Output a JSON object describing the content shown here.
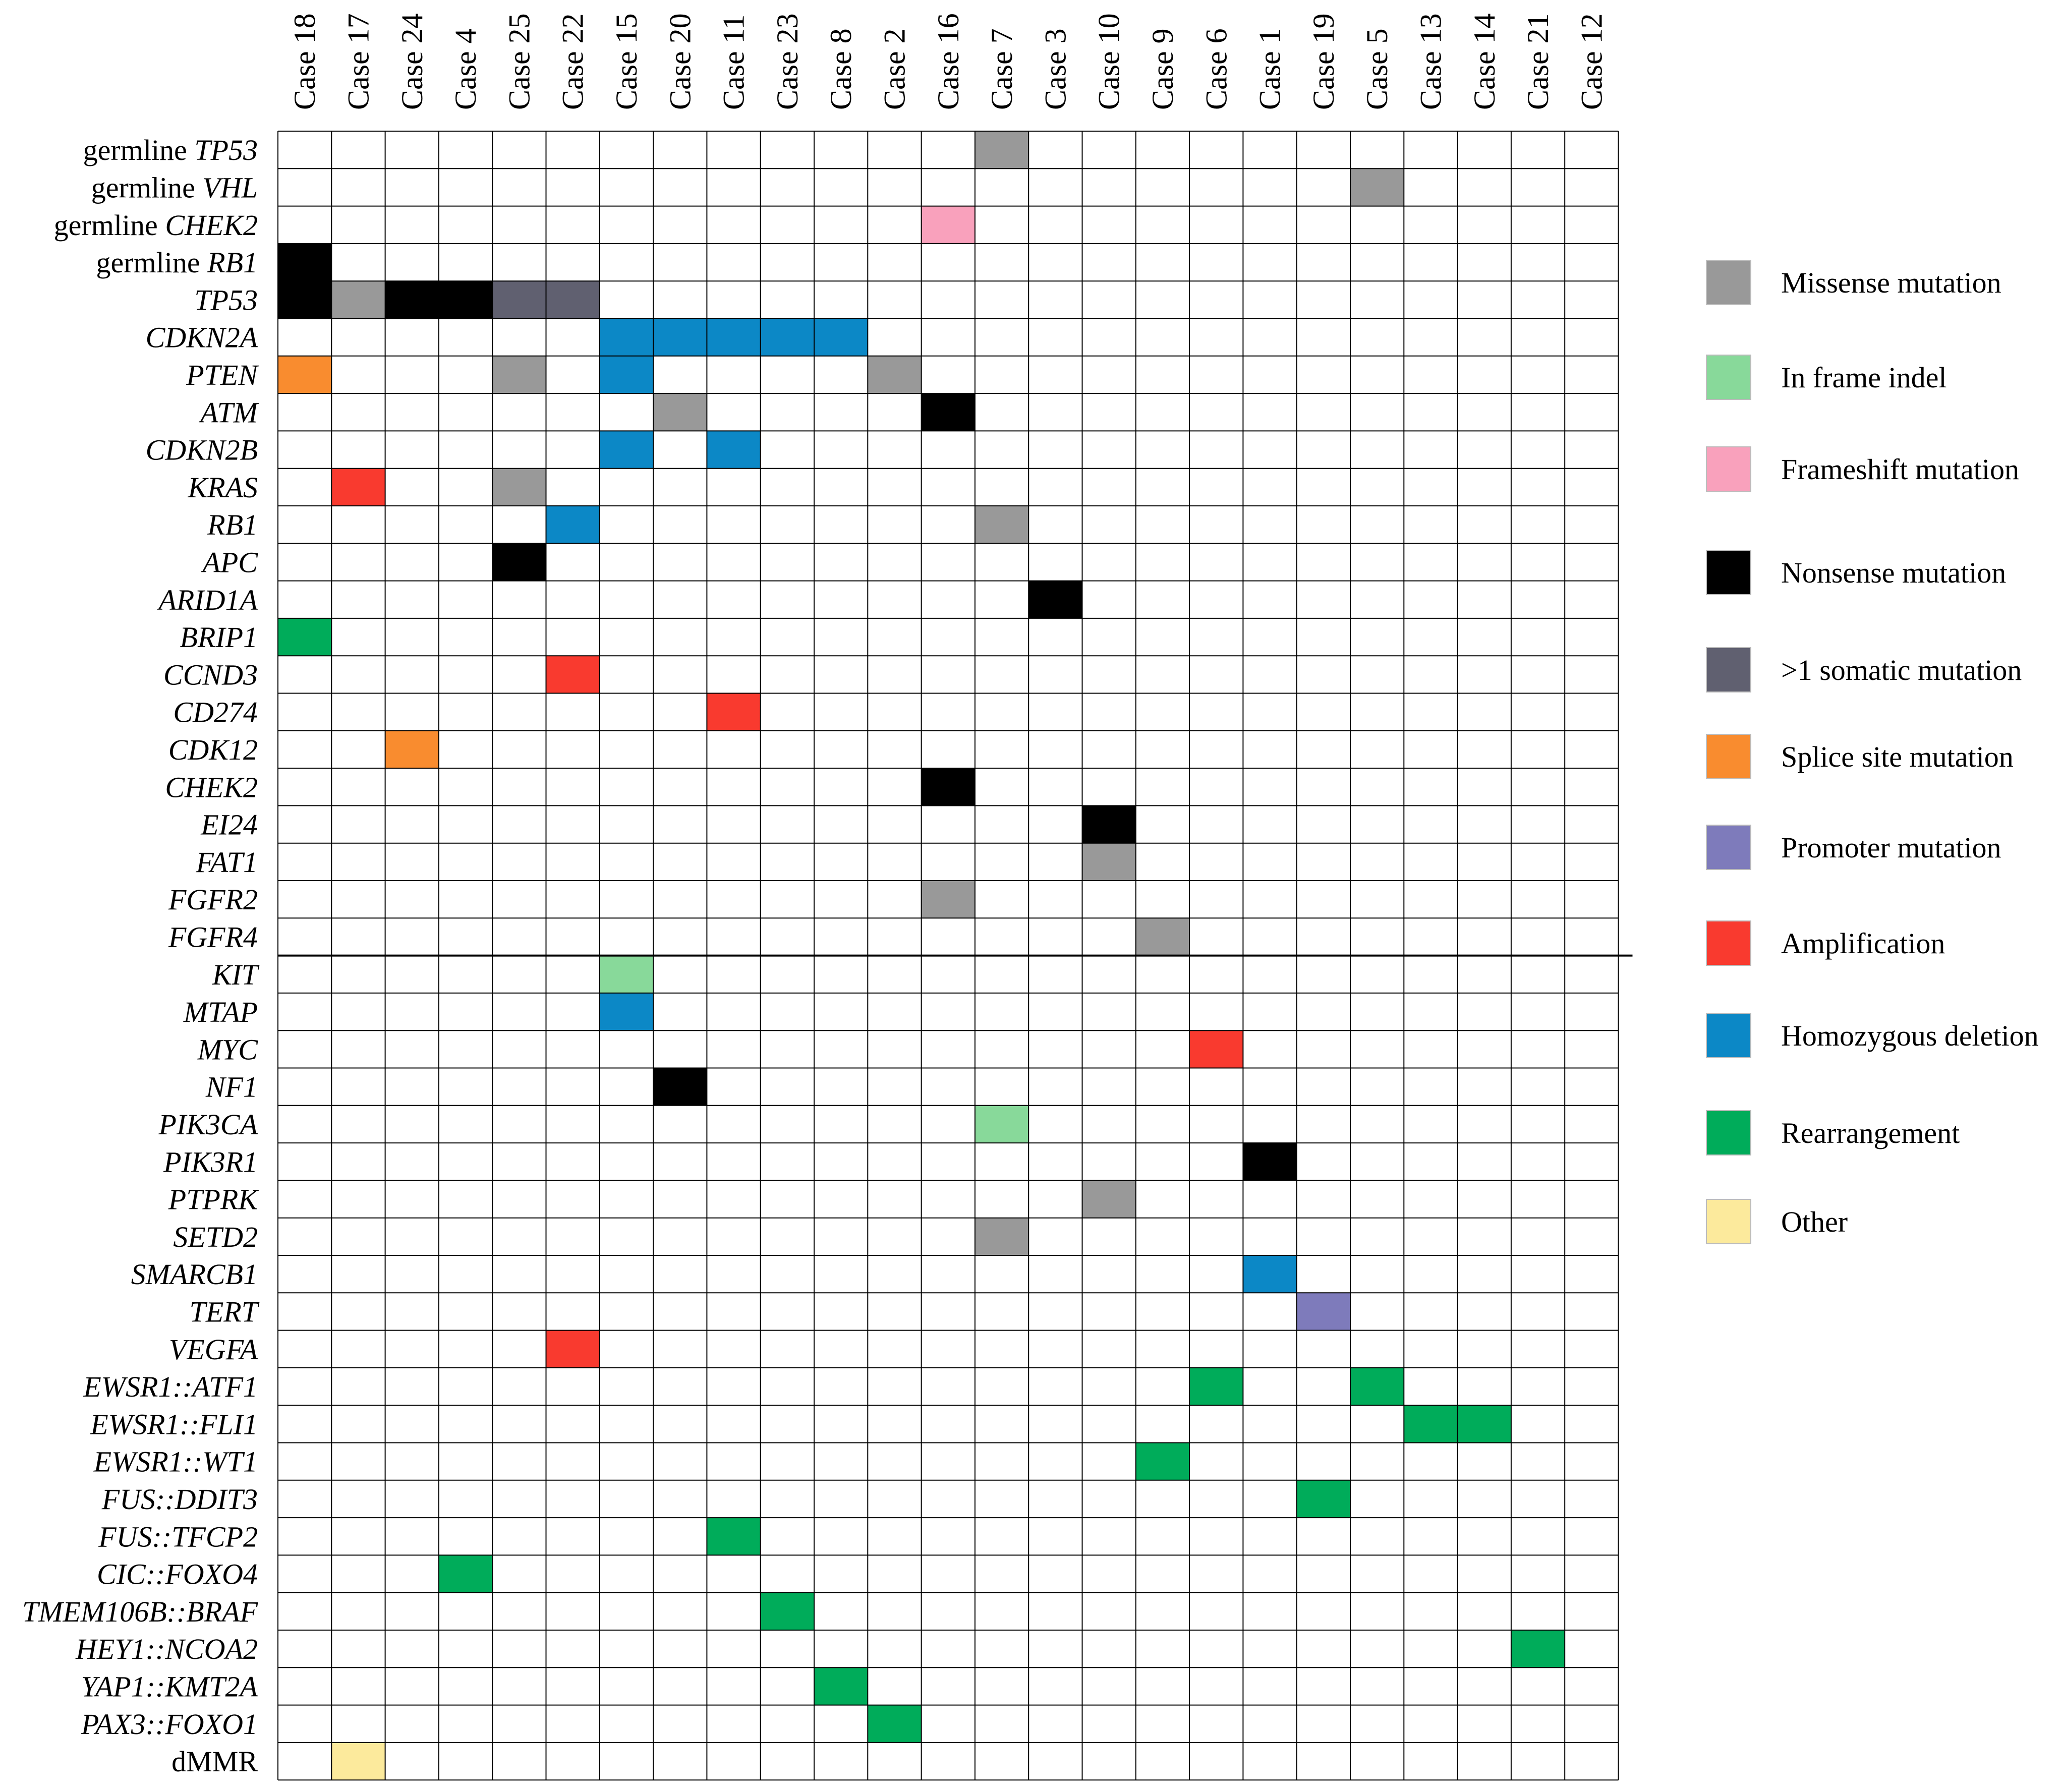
{
  "chart_data": {
    "type": "heatmap",
    "title": "",
    "cases": [
      "Case 18",
      "Case 17",
      "Case 24",
      "Case 4",
      "Case 25",
      "Case 22",
      "Case 15",
      "Case 20",
      "Case 11",
      "Case 23",
      "Case 8",
      "Case 2",
      "Case 16",
      "Case 7",
      "Case 3",
      "Case 10",
      "Case 9",
      "Case 6",
      "Case 1",
      "Case 19",
      "Case 5",
      "Case 13",
      "Case 14",
      "Case 21",
      "Case 12"
    ],
    "rows": [
      {
        "prefix": "germline ",
        "gene": "TP53"
      },
      {
        "prefix": "germline ",
        "gene": "VHL"
      },
      {
        "prefix": "germline ",
        "gene": "CHEK2"
      },
      {
        "prefix": "germline ",
        "gene": "RB1"
      },
      {
        "prefix": "",
        "gene": "TP53"
      },
      {
        "prefix": "",
        "gene": "CDKN2A"
      },
      {
        "prefix": "",
        "gene": "PTEN"
      },
      {
        "prefix": "",
        "gene": "ATM"
      },
      {
        "prefix": "",
        "gene": "CDKN2B"
      },
      {
        "prefix": "",
        "gene": "KRAS"
      },
      {
        "prefix": "",
        "gene": "RB1"
      },
      {
        "prefix": "",
        "gene": "APC"
      },
      {
        "prefix": "",
        "gene": "ARID1A"
      },
      {
        "prefix": "",
        "gene": "BRIP1"
      },
      {
        "prefix": "",
        "gene": "CCND3"
      },
      {
        "prefix": "",
        "gene": "CD274"
      },
      {
        "prefix": "",
        "gene": "CDK12"
      },
      {
        "prefix": "",
        "gene": "CHEK2"
      },
      {
        "prefix": "",
        "gene": "EI24"
      },
      {
        "prefix": "",
        "gene": "FAT1"
      },
      {
        "prefix": "",
        "gene": "FGFR2"
      },
      {
        "prefix": "",
        "gene": "FGFR4"
      },
      {
        "prefix": "",
        "gene": "KIT"
      },
      {
        "prefix": "",
        "gene": "MTAP"
      },
      {
        "prefix": "",
        "gene": "MYC"
      },
      {
        "prefix": "",
        "gene": "NF1"
      },
      {
        "prefix": "",
        "gene": "PIK3CA"
      },
      {
        "prefix": "",
        "gene": "PIK3R1"
      },
      {
        "prefix": "",
        "gene": "PTPRK"
      },
      {
        "prefix": "",
        "gene": "SETD2"
      },
      {
        "prefix": "",
        "gene": "SMARCB1"
      },
      {
        "prefix": "",
        "gene": "TERT"
      },
      {
        "prefix": "",
        "gene": "VEGFA"
      },
      {
        "prefix": "",
        "gene": "EWSR1::ATF1"
      },
      {
        "prefix": "",
        "gene": "EWSR1::FLI1"
      },
      {
        "prefix": "",
        "gene": "EWSR1::WT1"
      },
      {
        "prefix": "",
        "gene": "FUS::DDIT3"
      },
      {
        "prefix": "",
        "gene": "FUS::TFCP2"
      },
      {
        "prefix": "",
        "gene": "CIC::FOXO4"
      },
      {
        "prefix": "",
        "gene": "TMEM106B::BRAF"
      },
      {
        "prefix": "",
        "gene": "HEY1::NCOA2"
      },
      {
        "prefix": "",
        "gene": "YAP1::KMT2A"
      },
      {
        "prefix": "",
        "gene": "PAX3::FOXO1"
      },
      {
        "prefix": "dMMR",
        "gene": ""
      }
    ],
    "separator_after_row": 22,
    "categories": [
      {
        "key": "missense",
        "label": "Missense mutation",
        "color": "#999999"
      },
      {
        "key": "inframe",
        "label": "In frame indel",
        "color": "#88D99A"
      },
      {
        "key": "frameshift",
        "label": "Frameshift mutation",
        "color": "#F9A1BC"
      },
      {
        "key": "nonsense",
        "label": "Nonsense mutation",
        "color": "#000000"
      },
      {
        "key": "multi",
        "label": ">1 somatic mutation",
        "color": "#606070"
      },
      {
        "key": "splice",
        "label": "Splice site mutation",
        "color": "#F98C2F"
      },
      {
        "key": "promoter",
        "label": "Promoter mutation",
        "color": "#7E7BBB"
      },
      {
        "key": "amplification",
        "label": "Amplification",
        "color": "#F93A2F"
      },
      {
        "key": "homdel",
        "label": "Homozygous deletion",
        "color": "#0C88C6"
      },
      {
        "key": "rearrangement",
        "label": "Rearrangement",
        "color": "#00AC5A"
      },
      {
        "key": "other",
        "label": "Other",
        "color": "#FCEA9C"
      }
    ],
    "alterations": [
      {
        "row": 0,
        "col": 13,
        "type": "missense"
      },
      {
        "row": 1,
        "col": 20,
        "type": "missense"
      },
      {
        "row": 2,
        "col": 12,
        "type": "frameshift"
      },
      {
        "row": 3,
        "col": 0,
        "type": "nonsense"
      },
      {
        "row": 4,
        "col": 0,
        "type": "nonsense"
      },
      {
        "row": 4,
        "col": 1,
        "type": "missense"
      },
      {
        "row": 4,
        "col": 2,
        "type": "nonsense"
      },
      {
        "row": 4,
        "col": 3,
        "type": "nonsense"
      },
      {
        "row": 4,
        "col": 4,
        "type": "multi"
      },
      {
        "row": 4,
        "col": 5,
        "type": "multi"
      },
      {
        "row": 5,
        "col": 6,
        "type": "homdel"
      },
      {
        "row": 5,
        "col": 7,
        "type": "homdel"
      },
      {
        "row": 5,
        "col": 8,
        "type": "homdel"
      },
      {
        "row": 5,
        "col": 9,
        "type": "homdel"
      },
      {
        "row": 5,
        "col": 10,
        "type": "homdel"
      },
      {
        "row": 6,
        "col": 0,
        "type": "splice"
      },
      {
        "row": 6,
        "col": 4,
        "type": "missense"
      },
      {
        "row": 6,
        "col": 6,
        "type": "homdel"
      },
      {
        "row": 6,
        "col": 11,
        "type": "missense"
      },
      {
        "row": 7,
        "col": 7,
        "type": "missense"
      },
      {
        "row": 7,
        "col": 12,
        "type": "nonsense"
      },
      {
        "row": 8,
        "col": 6,
        "type": "homdel"
      },
      {
        "row": 8,
        "col": 8,
        "type": "homdel"
      },
      {
        "row": 9,
        "col": 1,
        "type": "amplification"
      },
      {
        "row": 9,
        "col": 4,
        "type": "missense"
      },
      {
        "row": 10,
        "col": 5,
        "type": "homdel"
      },
      {
        "row": 10,
        "col": 13,
        "type": "missense"
      },
      {
        "row": 11,
        "col": 4,
        "type": "nonsense"
      },
      {
        "row": 12,
        "col": 14,
        "type": "nonsense"
      },
      {
        "row": 13,
        "col": 0,
        "type": "rearrangement"
      },
      {
        "row": 14,
        "col": 5,
        "type": "amplification"
      },
      {
        "row": 15,
        "col": 8,
        "type": "amplification"
      },
      {
        "row": 16,
        "col": 2,
        "type": "splice"
      },
      {
        "row": 17,
        "col": 12,
        "type": "nonsense"
      },
      {
        "row": 18,
        "col": 15,
        "type": "nonsense"
      },
      {
        "row": 19,
        "col": 15,
        "type": "missense"
      },
      {
        "row": 20,
        "col": 12,
        "type": "missense"
      },
      {
        "row": 21,
        "col": 16,
        "type": "missense"
      },
      {
        "row": 22,
        "col": 6,
        "type": "inframe"
      },
      {
        "row": 23,
        "col": 6,
        "type": "homdel"
      },
      {
        "row": 24,
        "col": 17,
        "type": "amplification"
      },
      {
        "row": 25,
        "col": 7,
        "type": "nonsense"
      },
      {
        "row": 26,
        "col": 13,
        "type": "inframe"
      },
      {
        "row": 27,
        "col": 18,
        "type": "nonsense"
      },
      {
        "row": 28,
        "col": 15,
        "type": "missense"
      },
      {
        "row": 29,
        "col": 13,
        "type": "missense"
      },
      {
        "row": 30,
        "col": 18,
        "type": "homdel"
      },
      {
        "row": 31,
        "col": 19,
        "type": "promoter"
      },
      {
        "row": 32,
        "col": 5,
        "type": "amplification"
      },
      {
        "row": 33,
        "col": 17,
        "type": "rearrangement"
      },
      {
        "row": 33,
        "col": 20,
        "type": "rearrangement"
      },
      {
        "row": 34,
        "col": 21,
        "type": "rearrangement"
      },
      {
        "row": 34,
        "col": 22,
        "type": "rearrangement"
      },
      {
        "row": 35,
        "col": 16,
        "type": "rearrangement"
      },
      {
        "row": 36,
        "col": 19,
        "type": "rearrangement"
      },
      {
        "row": 37,
        "col": 8,
        "type": "rearrangement"
      },
      {
        "row": 38,
        "col": 3,
        "type": "rearrangement"
      },
      {
        "row": 39,
        "col": 9,
        "type": "rearrangement"
      },
      {
        "row": 40,
        "col": 23,
        "type": "rearrangement"
      },
      {
        "row": 41,
        "col": 10,
        "type": "rearrangement"
      },
      {
        "row": 42,
        "col": 11,
        "type": "rearrangement"
      },
      {
        "row": 43,
        "col": 1,
        "type": "other"
      }
    ]
  }
}
